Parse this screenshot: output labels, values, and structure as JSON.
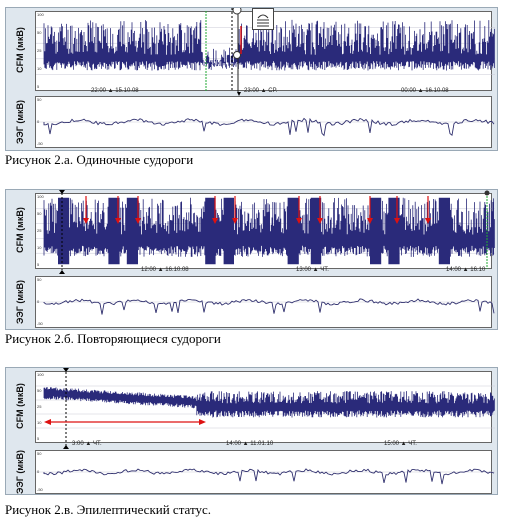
{
  "figures": [
    {
      "caption": "Рисунок 2.а. Одиночные судороги",
      "cfm_label": "CFM (мкВ)",
      "eeg_label": "ЭЭГ (мкВ)",
      "cfm_ticks": [
        "100",
        "50",
        "25",
        "10",
        "5"
      ],
      "eeg_ticks": [
        "50",
        "0",
        "-50"
      ],
      "time_labels": [
        "22:00 ▲ 15.10.08",
        "23:00 ▲ СР.",
        "00:00 ▲ 16.10.08"
      ]
    },
    {
      "caption": "Рисунок 2.б. Повторяющиеся судороги",
      "cfm_label": "CFM (мкВ)",
      "eeg_label": "ЭЭГ (мкВ)",
      "cfm_ticks": [
        "100",
        "50",
        "25",
        "10",
        "5"
      ],
      "eeg_ticks": [
        "50",
        "0",
        "-50"
      ],
      "time_labels": [
        "12:00 ▲ 16.10.08",
        "13:00 ▲ ЧТ.",
        "14:00 ▲ 16.10"
      ]
    },
    {
      "caption": "Рисунок 2.в. Эпилептический статус.",
      "cfm_label": "CFM (мкВ)",
      "eeg_label": "ЭЭГ (мкВ)",
      "cfm_ticks": [
        "100",
        "50",
        "25",
        "10",
        "5"
      ],
      "eeg_ticks": [
        "50",
        "0",
        "-50"
      ],
      "time_labels": [
        "3:00 ▲ ЧТ.",
        "14:00 ▲ 11.01.10",
        "15:00 ▲ ЧТ."
      ]
    }
  ],
  "colors": {
    "trace": "#2a2a7a",
    "marker_red": "#dd1111",
    "marker_green": "#22aa33",
    "panel_bg": "#dfe7ee"
  }
}
